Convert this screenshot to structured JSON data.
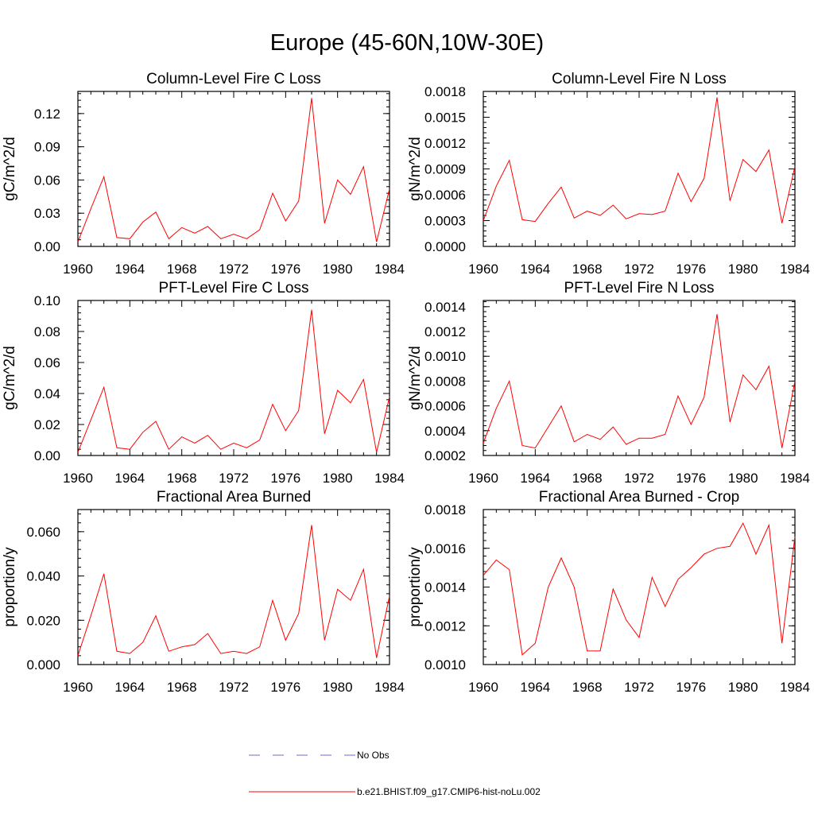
{
  "page_title": "Europe (45-60N,10W-30E)",
  "legend": [
    {
      "label": "No Obs",
      "color": "#6b6bd6",
      "dash": true
    },
    {
      "label": "b.e21.BHIST.f09_g17.CMIP6-hist-noLu.002",
      "color": "#ff0000",
      "dash": false
    }
  ],
  "chart_data": [
    {
      "type": "line",
      "title": "Column-Level Fire C Loss",
      "ylabel": "gC/m^2/d",
      "xlim": [
        1960,
        1984
      ],
      "ylim": [
        0,
        0.14
      ],
      "xticks": [
        "1960",
        "1964",
        "1968",
        "1972",
        "1976",
        "1980",
        "1984"
      ],
      "yticks": [
        "0.00",
        "0.03",
        "0.06",
        "0.09",
        "0.12"
      ],
      "ytick_values": [
        0,
        0.03,
        0.06,
        0.09,
        0.12
      ],
      "x": [
        1960,
        1961,
        1962,
        1963,
        1964,
        1965,
        1966,
        1967,
        1968,
        1969,
        1970,
        1971,
        1972,
        1973,
        1974,
        1975,
        1976,
        1977,
        1978,
        1979,
        1980,
        1981,
        1982,
        1983,
        1984
      ],
      "series": [
        {
          "values": [
            0.004,
            0.034,
            0.063,
            0.008,
            0.007,
            0.022,
            0.031,
            0.007,
            0.017,
            0.012,
            0.018,
            0.007,
            0.011,
            0.007,
            0.015,
            0.048,
            0.023,
            0.041,
            0.134,
            0.021,
            0.06,
            0.047,
            0.072,
            0.004,
            0.052
          ]
        }
      ]
    },
    {
      "type": "line",
      "title": "Column-Level Fire N Loss",
      "ylabel": "gN/m^2/d",
      "xlim": [
        1960,
        1984
      ],
      "ylim": [
        0,
        0.0018
      ],
      "xticks": [
        "1960",
        "1964",
        "1968",
        "1972",
        "1976",
        "1980",
        "1984"
      ],
      "yticks": [
        "0.0000",
        "0.0003",
        "0.0006",
        "0.0009",
        "0.0012",
        "0.0015",
        "0.0018"
      ],
      "ytick_values": [
        0,
        0.0003,
        0.0006,
        0.0009,
        0.0012,
        0.0015,
        0.0018
      ],
      "x": [
        1960,
        1961,
        1962,
        1963,
        1964,
        1965,
        1966,
        1967,
        1968,
        1969,
        1970,
        1971,
        1972,
        1973,
        1974,
        1975,
        1976,
        1977,
        1978,
        1979,
        1980,
        1981,
        1982,
        1983,
        1984
      ],
      "series": [
        {
          "values": [
            0.0003,
            0.0007,
            0.001,
            0.00031,
            0.00029,
            0.0005,
            0.00069,
            0.00033,
            0.00041,
            0.00036,
            0.00048,
            0.00032,
            0.00038,
            0.00037,
            0.00041,
            0.00085,
            0.00052,
            0.00079,
            0.00173,
            0.00053,
            0.00101,
            0.00087,
            0.00112,
            0.00027,
            0.00093
          ]
        }
      ]
    },
    {
      "type": "line",
      "title": "PFT-Level Fire C Loss",
      "ylabel": "gC/m^2/d",
      "xlim": [
        1960,
        1984
      ],
      "ylim": [
        0,
        0.1
      ],
      "xticks": [
        "1960",
        "1964",
        "1968",
        "1972",
        "1976",
        "1980",
        "1984"
      ],
      "yticks": [
        "0.00",
        "0.02",
        "0.04",
        "0.06",
        "0.08",
        "0.10"
      ],
      "ytick_values": [
        0,
        0.02,
        0.04,
        0.06,
        0.08,
        0.1
      ],
      "x": [
        1960,
        1961,
        1962,
        1963,
        1964,
        1965,
        1966,
        1967,
        1968,
        1969,
        1970,
        1971,
        1972,
        1973,
        1974,
        1975,
        1976,
        1977,
        1978,
        1979,
        1980,
        1981,
        1982,
        1983,
        1984
      ],
      "series": [
        {
          "values": [
            0.002,
            0.023,
            0.044,
            0.005,
            0.004,
            0.015,
            0.022,
            0.004,
            0.012,
            0.008,
            0.013,
            0.004,
            0.008,
            0.005,
            0.01,
            0.033,
            0.016,
            0.029,
            0.094,
            0.014,
            0.042,
            0.034,
            0.049,
            0.002,
            0.038
          ]
        }
      ]
    },
    {
      "type": "line",
      "title": "PFT-Level Fire N Loss",
      "ylabel": "gN/m^2/d",
      "xlim": [
        1960,
        1984
      ],
      "ylim": [
        0.0002,
        0.00145
      ],
      "xticks": [
        "1960",
        "1964",
        "1968",
        "1972",
        "1976",
        "1980",
        "1984"
      ],
      "yticks": [
        "0.0002",
        "0.0004",
        "0.0006",
        "0.0008",
        "0.0010",
        "0.0012",
        "0.0014"
      ],
      "ytick_values": [
        0.0002,
        0.0004,
        0.0006,
        0.0008,
        0.001,
        0.0012,
        0.0014
      ],
      "x": [
        1960,
        1961,
        1962,
        1963,
        1964,
        1965,
        1966,
        1967,
        1968,
        1969,
        1970,
        1971,
        1972,
        1973,
        1974,
        1975,
        1976,
        1977,
        1978,
        1979,
        1980,
        1981,
        1982,
        1983,
        1984
      ],
      "series": [
        {
          "values": [
            0.0003,
            0.00058,
            0.0008,
            0.00028,
            0.00026,
            0.00043,
            0.0006,
            0.00031,
            0.00037,
            0.00033,
            0.00043,
            0.00029,
            0.00034,
            0.00034,
            0.00037,
            0.00068,
            0.00045,
            0.00067,
            0.00134,
            0.00047,
            0.00085,
            0.00073,
            0.00092,
            0.00026,
            0.0008
          ]
        }
      ]
    },
    {
      "type": "line",
      "title": "Fractional Area Burned",
      "ylabel": "proportion/y",
      "xlim": [
        1960,
        1984
      ],
      "ylim": [
        0,
        0.07
      ],
      "xticks": [
        "1960",
        "1964",
        "1968",
        "1972",
        "1976",
        "1980",
        "1984"
      ],
      "yticks": [
        "0.000",
        "0.020",
        "0.040",
        "0.060"
      ],
      "ytick_values": [
        0,
        0.02,
        0.04,
        0.06
      ],
      "x": [
        1960,
        1961,
        1962,
        1963,
        1964,
        1965,
        1966,
        1967,
        1968,
        1969,
        1970,
        1971,
        1972,
        1973,
        1974,
        1975,
        1976,
        1977,
        1978,
        1979,
        1980,
        1981,
        1982,
        1983,
        1984
      ],
      "series": [
        {
          "values": [
            0.004,
            0.022,
            0.041,
            0.006,
            0.005,
            0.01,
            0.022,
            0.006,
            0.008,
            0.009,
            0.014,
            0.005,
            0.006,
            0.005,
            0.008,
            0.029,
            0.011,
            0.023,
            0.063,
            0.011,
            0.034,
            0.029,
            0.043,
            0.003,
            0.031
          ]
        }
      ]
    },
    {
      "type": "line",
      "title": "Fractional Area Burned - Crop",
      "ylabel": "proportion/y",
      "xlim": [
        1960,
        1984
      ],
      "ylim": [
        0.001,
        0.0018
      ],
      "xticks": [
        "1960",
        "1964",
        "1968",
        "1972",
        "1976",
        "1980",
        "1984"
      ],
      "yticks": [
        "0.0010",
        "0.0012",
        "0.0014",
        "0.0016",
        "0.0018"
      ],
      "ytick_values": [
        0.001,
        0.0012,
        0.0014,
        0.0016,
        0.0018
      ],
      "x": [
        1960,
        1961,
        1962,
        1963,
        1964,
        1965,
        1966,
        1967,
        1968,
        1969,
        1970,
        1971,
        1972,
        1973,
        1974,
        1975,
        1976,
        1977,
        1978,
        1979,
        1980,
        1981,
        1982,
        1983,
        1984
      ],
      "series": [
        {
          "values": [
            0.00146,
            0.00154,
            0.00149,
            0.00105,
            0.00111,
            0.0014,
            0.00155,
            0.0014,
            0.00107,
            0.00107,
            0.00139,
            0.00123,
            0.00114,
            0.00145,
            0.0013,
            0.00144,
            0.0015,
            0.00157,
            0.0016,
            0.00161,
            0.00173,
            0.00157,
            0.00172,
            0.00111,
            0.00166
          ]
        }
      ]
    }
  ]
}
